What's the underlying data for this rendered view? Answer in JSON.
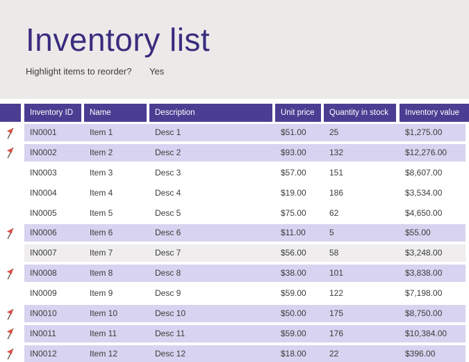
{
  "page": {
    "title": "Inventory list",
    "reorder_question": "Highlight items to reorder?",
    "reorder_answer": "Yes"
  },
  "colors": {
    "page_top_bg": "#ECEAE9",
    "title_color": "#3A2C7E",
    "header_bg": "#4B3E92",
    "row_highlight_bg": "#D8D3F0",
    "row_band_bg": "#EFEDEE",
    "flag_red": "#D94F43"
  },
  "icons": {
    "flag": "reorder-flag-icon"
  },
  "table": {
    "columns": [
      "",
      "Inventory ID",
      "Name",
      "Description",
      "Unit price",
      "Quantity in stock",
      "Inventory value"
    ],
    "rows": [
      {
        "id": "IN0001",
        "name": "Item 1",
        "desc": "Desc 1",
        "unit_price": "$51.00",
        "qty": "25",
        "value": "$1,275.00",
        "flagged": true,
        "band": "purple"
      },
      {
        "id": "IN0002",
        "name": "Item 2",
        "desc": "Desc 2",
        "unit_price": "$93.00",
        "qty": "132",
        "value": "$12,276.00",
        "flagged": true,
        "band": "purple"
      },
      {
        "id": "IN0003",
        "name": "Item 3",
        "desc": "Desc 3",
        "unit_price": "$57.00",
        "qty": "151",
        "value": "$8,607.00",
        "flagged": false,
        "band": "white"
      },
      {
        "id": "IN0004",
        "name": "Item 4",
        "desc": "Desc 4",
        "unit_price": "$19.00",
        "qty": "186",
        "value": "$3,534.00",
        "flagged": false,
        "band": "white"
      },
      {
        "id": "IN0005",
        "name": "Item 5",
        "desc": "Desc 5",
        "unit_price": "$75.00",
        "qty": "62",
        "value": "$4,650.00",
        "flagged": false,
        "band": "white"
      },
      {
        "id": "IN0006",
        "name": "Item 6",
        "desc": "Desc 6",
        "unit_price": "$11.00",
        "qty": "5",
        "value": "$55.00",
        "flagged": true,
        "band": "purple"
      },
      {
        "id": "IN0007",
        "name": "Item 7",
        "desc": "Desc 7",
        "unit_price": "$56.00",
        "qty": "58",
        "value": "$3,248.00",
        "flagged": false,
        "band": "gray"
      },
      {
        "id": "IN0008",
        "name": "Item 8",
        "desc": "Desc 8",
        "unit_price": "$38.00",
        "qty": "101",
        "value": "$3,838.00",
        "flagged": true,
        "band": "purple"
      },
      {
        "id": "IN0009",
        "name": "Item 9",
        "desc": "Desc 9",
        "unit_price": "$59.00",
        "qty": "122",
        "value": "$7,198.00",
        "flagged": false,
        "band": "white"
      },
      {
        "id": "IN0010",
        "name": "Item 10",
        "desc": "Desc 10",
        "unit_price": "$50.00",
        "qty": "175",
        "value": "$8,750.00",
        "flagged": true,
        "band": "purple"
      },
      {
        "id": "IN0011",
        "name": "Item 11",
        "desc": "Desc 11",
        "unit_price": "$59.00",
        "qty": "176",
        "value": "$10,384.00",
        "flagged": true,
        "band": "purple"
      },
      {
        "id": "IN0012",
        "name": "Item 12",
        "desc": "Desc 12",
        "unit_price": "$18.00",
        "qty": "22",
        "value": "$396.00",
        "flagged": true,
        "band": "purple"
      }
    ]
  }
}
